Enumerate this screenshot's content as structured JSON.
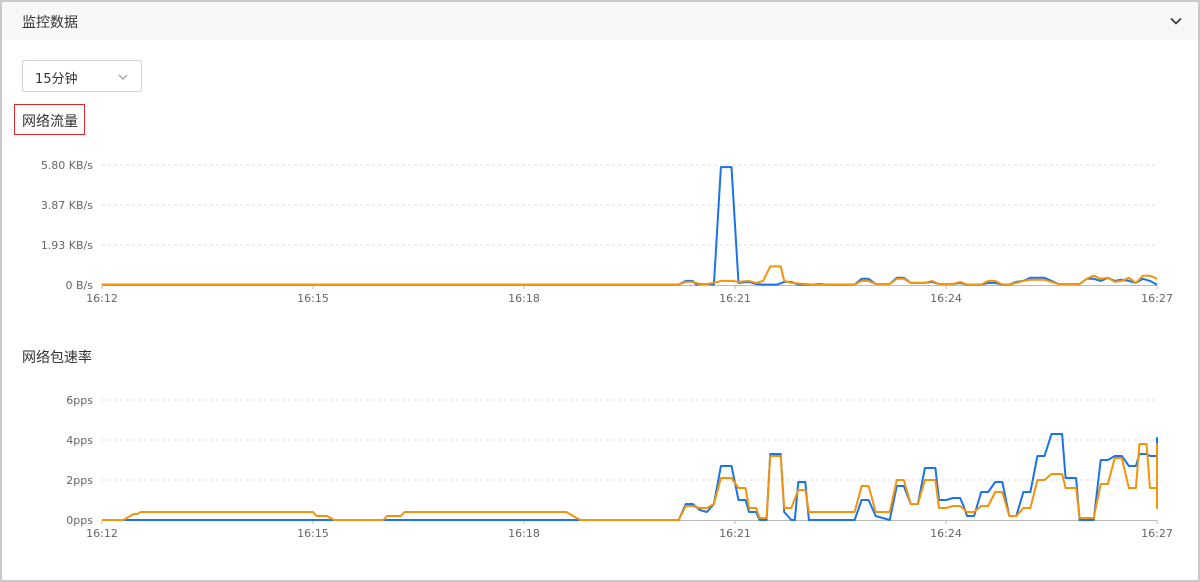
{
  "header": {
    "title": "监控数据",
    "toggle_icon": "chevron-down-icon"
  },
  "time_select": {
    "value": "15分钟",
    "caret_icon": "chevron-down-icon"
  },
  "colors": {
    "series_a": "#1a73e8",
    "series_b": "#f5930b",
    "grid": "#dddddd"
  },
  "chart_data": [
    {
      "type": "line",
      "title": "网络流量",
      "x_ticks": [
        "16:12",
        "16:15",
        "16:18",
        "16:21",
        "16:24",
        "16:27"
      ],
      "y_ticks": [
        "0 B/s",
        "1.93 KB/s",
        "3.87 KB/s",
        "5.80 KB/s"
      ],
      "ylim": [
        0,
        5.8
      ],
      "y_unit": "KB/s",
      "x_range": [
        0,
        15
      ],
      "grid": true,
      "series": [
        {
          "color": "#1a73e8",
          "points": [
            [
              0,
              0.02
            ],
            [
              8.2,
              0.02
            ],
            [
              8.3,
              0.2
            ],
            [
              8.4,
              0.2
            ],
            [
              8.45,
              0.02
            ],
            [
              8.5,
              0.05
            ],
            [
              8.6,
              0.05
            ],
            [
              8.7,
              0.02
            ],
            [
              8.8,
              5.7
            ],
            [
              8.95,
              5.7
            ],
            [
              9.05,
              0.1
            ],
            [
              9.2,
              0.15
            ],
            [
              9.3,
              0.05
            ],
            [
              9.4,
              0.02
            ],
            [
              9.6,
              0.02
            ],
            [
              9.7,
              0.15
            ],
            [
              9.8,
              0.15
            ],
            [
              9.9,
              0.02
            ],
            [
              10.1,
              0.02
            ],
            [
              10.2,
              0.05
            ],
            [
              10.3,
              0.02
            ],
            [
              10.7,
              0.02
            ],
            [
              10.8,
              0.3
            ],
            [
              10.9,
              0.3
            ],
            [
              11.0,
              0.05
            ],
            [
              11.2,
              0.05
            ],
            [
              11.3,
              0.35
            ],
            [
              11.4,
              0.35
            ],
            [
              11.5,
              0.1
            ],
            [
              11.7,
              0.1
            ],
            [
              11.8,
              0.15
            ],
            [
              11.9,
              0.05
            ],
            [
              12.1,
              0.05
            ],
            [
              12.2,
              0.1
            ],
            [
              12.3,
              0.02
            ],
            [
              12.5,
              0.02
            ],
            [
              12.6,
              0.1
            ],
            [
              12.7,
              0.1
            ],
            [
              12.8,
              0.02
            ],
            [
              12.9,
              0.02
            ],
            [
              13.0,
              0.15
            ],
            [
              13.1,
              0.2
            ],
            [
              13.2,
              0.35
            ],
            [
              13.4,
              0.35
            ],
            [
              13.5,
              0.2
            ],
            [
              13.6,
              0.05
            ],
            [
              13.8,
              0.05
            ],
            [
              13.9,
              0.05
            ],
            [
              14.0,
              0.3
            ],
            [
              14.1,
              0.3
            ],
            [
              14.2,
              0.2
            ],
            [
              14.3,
              0.35
            ],
            [
              14.4,
              0.2
            ],
            [
              14.5,
              0.25
            ],
            [
              14.6,
              0.2
            ],
            [
              14.7,
              0.1
            ],
            [
              14.8,
              0.3
            ],
            [
              14.9,
              0.2
            ],
            [
              15.0,
              0.02
            ]
          ]
        },
        {
          "color": "#f5930b",
          "points": [
            [
              0,
              0.02
            ],
            [
              8.2,
              0.02
            ],
            [
              8.3,
              0.15
            ],
            [
              8.4,
              0.15
            ],
            [
              8.5,
              0.05
            ],
            [
              8.6,
              0.05
            ],
            [
              8.7,
              0.1
            ],
            [
              8.8,
              0.2
            ],
            [
              8.95,
              0.2
            ],
            [
              9.05,
              0.15
            ],
            [
              9.2,
              0.2
            ],
            [
              9.3,
              0.1
            ],
            [
              9.4,
              0.2
            ],
            [
              9.5,
              0.9
            ],
            [
              9.65,
              0.9
            ],
            [
              9.7,
              0.2
            ],
            [
              9.8,
              0.1
            ],
            [
              10.0,
              0.05
            ],
            [
              10.1,
              0.02
            ],
            [
              10.7,
              0.02
            ],
            [
              10.8,
              0.2
            ],
            [
              10.9,
              0.2
            ],
            [
              11.0,
              0.05
            ],
            [
              11.2,
              0.05
            ],
            [
              11.3,
              0.3
            ],
            [
              11.4,
              0.3
            ],
            [
              11.5,
              0.1
            ],
            [
              11.7,
              0.1
            ],
            [
              11.8,
              0.2
            ],
            [
              11.9,
              0.05
            ],
            [
              12.1,
              0.05
            ],
            [
              12.2,
              0.15
            ],
            [
              12.3,
              0.02
            ],
            [
              12.5,
              0.02
            ],
            [
              12.6,
              0.2
            ],
            [
              12.7,
              0.2
            ],
            [
              12.8,
              0.02
            ],
            [
              12.9,
              0.02
            ],
            [
              13.0,
              0.1
            ],
            [
              13.1,
              0.2
            ],
            [
              13.2,
              0.25
            ],
            [
              13.4,
              0.25
            ],
            [
              13.5,
              0.15
            ],
            [
              13.6,
              0.05
            ],
            [
              13.8,
              0.05
            ],
            [
              13.9,
              0.05
            ],
            [
              14.0,
              0.3
            ],
            [
              14.1,
              0.45
            ],
            [
              14.2,
              0.3
            ],
            [
              14.3,
              0.35
            ],
            [
              14.4,
              0.15
            ],
            [
              14.5,
              0.2
            ],
            [
              14.6,
              0.35
            ],
            [
              14.7,
              0.1
            ],
            [
              14.8,
              0.45
            ],
            [
              14.9,
              0.45
            ],
            [
              15.0,
              0.3
            ]
          ]
        }
      ]
    },
    {
      "type": "line",
      "title": "网络包速率",
      "x_ticks": [
        "16:12",
        "16:15",
        "16:18",
        "16:21",
        "16:24",
        "16:27"
      ],
      "y_ticks": [
        "0pps",
        "2pps",
        "4pps",
        "6pps"
      ],
      "ylim": [
        0,
        6
      ],
      "y_unit": "pps",
      "x_range": [
        0,
        15
      ],
      "grid": true,
      "series": [
        {
          "color": "#1a73e8",
          "points": [
            [
              0,
              0
            ],
            [
              8.2,
              0
            ],
            [
              8.3,
              0.8
            ],
            [
              8.4,
              0.8
            ],
            [
              8.5,
              0.5
            ],
            [
              8.6,
              0.4
            ],
            [
              8.7,
              0.8
            ],
            [
              8.8,
              2.7
            ],
            [
              8.95,
              2.7
            ],
            [
              9.05,
              1.0
            ],
            [
              9.15,
              1.0
            ],
            [
              9.2,
              0.4
            ],
            [
              9.3,
              0.4
            ],
            [
              9.35,
              0
            ],
            [
              9.45,
              0
            ],
            [
              9.5,
              3.3
            ],
            [
              9.65,
              3.3
            ],
            [
              9.7,
              0.4
            ],
            [
              9.8,
              0
            ],
            [
              9.85,
              0
            ],
            [
              9.9,
              1.9
            ],
            [
              10.0,
              1.9
            ],
            [
              10.05,
              0
            ],
            [
              10.7,
              0
            ],
            [
              10.8,
              1.0
            ],
            [
              10.9,
              1.0
            ],
            [
              11.0,
              0.2
            ],
            [
              11.1,
              0.1
            ],
            [
              11.2,
              0
            ],
            [
              11.3,
              1.7
            ],
            [
              11.4,
              1.7
            ],
            [
              11.5,
              0.8
            ],
            [
              11.6,
              0.8
            ],
            [
              11.7,
              2.6
            ],
            [
              11.85,
              2.6
            ],
            [
              11.9,
              1.0
            ],
            [
              12.0,
              1.0
            ],
            [
              12.1,
              1.1
            ],
            [
              12.2,
              1.1
            ],
            [
              12.25,
              0.7
            ],
            [
              12.3,
              0.2
            ],
            [
              12.4,
              0.2
            ],
            [
              12.5,
              1.4
            ],
            [
              12.6,
              1.4
            ],
            [
              12.7,
              1.9
            ],
            [
              12.8,
              1.9
            ],
            [
              12.9,
              0.2
            ],
            [
              13.0,
              0.2
            ],
            [
              13.1,
              1.4
            ],
            [
              13.2,
              1.4
            ],
            [
              13.3,
              3.2
            ],
            [
              13.4,
              3.2
            ],
            [
              13.5,
              4.3
            ],
            [
              13.65,
              4.3
            ],
            [
              13.7,
              2.1
            ],
            [
              13.85,
              2.1
            ],
            [
              13.9,
              0
            ],
            [
              14.1,
              0
            ],
            [
              14.2,
              3.0
            ],
            [
              14.3,
              3.0
            ],
            [
              14.4,
              3.2
            ],
            [
              14.5,
              3.2
            ],
            [
              14.6,
              2.7
            ],
            [
              14.7,
              2.7
            ],
            [
              14.75,
              3.3
            ],
            [
              14.85,
              3.3
            ],
            [
              14.9,
              3.2
            ],
            [
              15.0,
              3.2
            ],
            [
              15.1,
              1.0
            ],
            [
              15.2,
              1.0
            ],
            [
              15.3,
              4.1
            ],
            [
              15.4,
              4.1
            ],
            [
              15.45,
              1.8
            ]
          ]
        },
        {
          "color": "#f5930b",
          "points": [
            [
              0,
              0
            ],
            [
              0.3,
              0
            ],
            [
              0.45,
              0.3
            ],
            [
              0.5,
              0.3
            ],
            [
              0.55,
              0.4
            ],
            [
              3.0,
              0.4
            ],
            [
              3.05,
              0.2
            ],
            [
              3.2,
              0.2
            ],
            [
              3.3,
              0
            ],
            [
              4.0,
              0
            ],
            [
              4.05,
              0.2
            ],
            [
              4.25,
              0.2
            ],
            [
              4.3,
              0.4
            ],
            [
              6.6,
              0.4
            ],
            [
              6.7,
              0.2
            ],
            [
              6.8,
              0
            ],
            [
              8.2,
              0
            ],
            [
              8.3,
              0.7
            ],
            [
              8.4,
              0.7
            ],
            [
              8.5,
              0.6
            ],
            [
              8.6,
              0.6
            ],
            [
              8.7,
              0.8
            ],
            [
              8.8,
              2.1
            ],
            [
              8.95,
              2.1
            ],
            [
              9.05,
              1.6
            ],
            [
              9.15,
              1.6
            ],
            [
              9.2,
              0.6
            ],
            [
              9.3,
              0.6
            ],
            [
              9.35,
              0.1
            ],
            [
              9.45,
              0.1
            ],
            [
              9.5,
              3.2
            ],
            [
              9.65,
              3.2
            ],
            [
              9.7,
              0.6
            ],
            [
              9.8,
              0.6
            ],
            [
              9.9,
              1.5
            ],
            [
              10.0,
              1.5
            ],
            [
              10.05,
              0.4
            ],
            [
              10.7,
              0.4
            ],
            [
              10.8,
              1.7
            ],
            [
              10.9,
              1.7
            ],
            [
              11.0,
              0.4
            ],
            [
              11.2,
              0.4
            ],
            [
              11.3,
              2.0
            ],
            [
              11.4,
              2.0
            ],
            [
              11.5,
              0.8
            ],
            [
              11.6,
              0.8
            ],
            [
              11.7,
              2.0
            ],
            [
              11.85,
              2.0
            ],
            [
              11.9,
              0.6
            ],
            [
              12.0,
              0.6
            ],
            [
              12.1,
              0.7
            ],
            [
              12.2,
              0.7
            ],
            [
              12.3,
              0.4
            ],
            [
              12.4,
              0.4
            ],
            [
              12.5,
              0.7
            ],
            [
              12.6,
              0.7
            ],
            [
              12.7,
              1.4
            ],
            [
              12.8,
              1.4
            ],
            [
              12.9,
              0.2
            ],
            [
              13.0,
              0.2
            ],
            [
              13.1,
              0.6
            ],
            [
              13.2,
              0.6
            ],
            [
              13.3,
              2.0
            ],
            [
              13.4,
              2.0
            ],
            [
              13.5,
              2.3
            ],
            [
              13.65,
              2.3
            ],
            [
              13.7,
              1.6
            ],
            [
              13.85,
              1.6
            ],
            [
              13.9,
              0.1
            ],
            [
              14.1,
              0.1
            ],
            [
              14.2,
              1.8
            ],
            [
              14.3,
              1.8
            ],
            [
              14.4,
              3.1
            ],
            [
              14.5,
              3.1
            ],
            [
              14.6,
              1.6
            ],
            [
              14.7,
              1.6
            ],
            [
              14.75,
              3.8
            ],
            [
              14.85,
              3.8
            ],
            [
              14.9,
              1.6
            ],
            [
              15.0,
              1.6
            ],
            [
              15.1,
              0.6
            ],
            [
              15.2,
              0.6
            ],
            [
              15.3,
              3.8
            ],
            [
              15.4,
              3.8
            ],
            [
              15.45,
              2.2
            ]
          ]
        }
      ]
    }
  ]
}
